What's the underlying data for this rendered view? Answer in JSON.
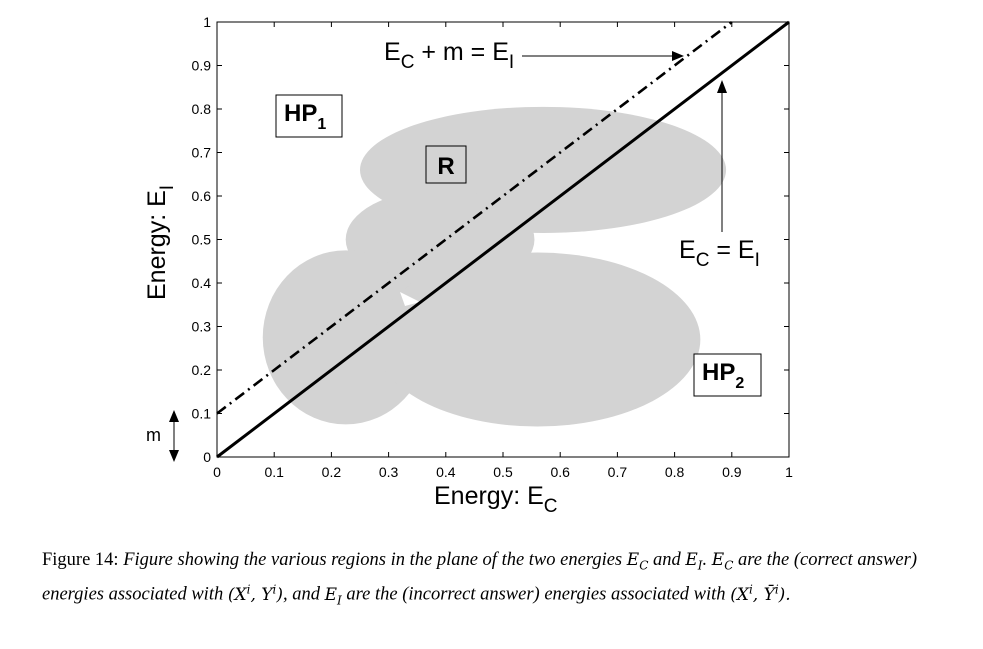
{
  "chart_data": {
    "type": "scatter",
    "xlabel": "Energy: E",
    "xlabel_sub": "C",
    "ylabel": "Energy: E",
    "ylabel_sub": "I",
    "xlim": [
      0,
      1
    ],
    "ylim": [
      0,
      1
    ],
    "grid": false,
    "x_ticks": [
      "0",
      "0.1",
      "0.2",
      "0.3",
      "0.4",
      "0.5",
      "0.6",
      "0.7",
      "0.8",
      "0.9",
      "1"
    ],
    "y_ticks": [
      "0",
      "0.1",
      "0.2",
      "0.3",
      "0.4",
      "0.5",
      "0.6",
      "0.7",
      "0.8",
      "0.9",
      "1"
    ],
    "lines": [
      {
        "name": "E_C = E_I",
        "style": "solid",
        "x": [
          0,
          1
        ],
        "y": [
          0,
          1
        ]
      },
      {
        "name": "E_C + m = E_I",
        "style": "dashdot",
        "x": [
          0,
          0.9
        ],
        "y": [
          0.1,
          1
        ]
      }
    ],
    "region_color": "#d3d3d3",
    "regions": [
      {
        "name": "upper-ellipse",
        "cx": 0.57,
        "cy": 0.66,
        "rx": 0.32,
        "ry": 0.145
      },
      {
        "name": "middle-ellipse",
        "cx": 0.39,
        "cy": 0.5,
        "rx": 0.165,
        "ry": 0.115
      },
      {
        "name": "left-ellipse",
        "cx": 0.225,
        "cy": 0.275,
        "rx": 0.145,
        "ry": 0.2
      },
      {
        "name": "lower-ellipse",
        "cx": 0.56,
        "cy": 0.27,
        "rx": 0.285,
        "ry": 0.2
      }
    ],
    "annotations": {
      "hp1": {
        "text": "HP",
        "sub": "1"
      },
      "hp2": {
        "text": "HP",
        "sub": "2"
      },
      "r": {
        "text": "R"
      },
      "line_eq_dashdot": {
        "pre": "E",
        "pre_sub": "C",
        "mid": " + m = E",
        "post_sub": "I"
      },
      "line_eq_solid": {
        "pre": "E",
        "pre_sub": "C",
        "mid": " = E",
        "post_sub": "I"
      },
      "m": {
        "text": "m"
      }
    }
  },
  "caption": {
    "label": "Figure 14:",
    "t1": "Figure showing the various regions in the plane of the two energies",
    "t2": "and",
    "t3": "are the (correct answer) energies associated with",
    "t4": ", and",
    "t5": "are the (incorrect answer) energies associated with",
    "ec": "E",
    "ec_sub": "C",
    "ei": "E",
    "ei_sub": "I",
    "xy": "(X",
    "xy_sup": "i",
    "xy_mid": ", Y",
    "xy_sup2": "i",
    "xy_end": ")",
    "xybar": "(X",
    "xybar_sup": "i",
    "xybar_mid": ", Ȳ",
    "xybar_sup2": "i",
    "xybar_end": ")."
  }
}
